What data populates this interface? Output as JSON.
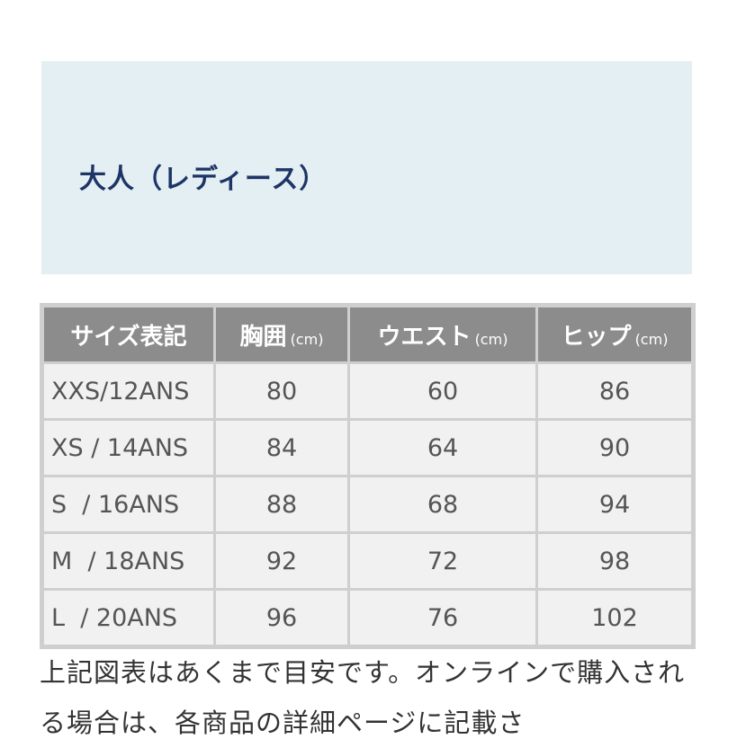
{
  "banner": {
    "title": "大人（レディース）"
  },
  "table": {
    "headers": [
      {
        "label": "サイズ表記",
        "unit": ""
      },
      {
        "label": "胸囲",
        "unit": "(cm)"
      },
      {
        "label": "ウエスト",
        "unit": "(cm)"
      },
      {
        "label": "ヒップ",
        "unit": "(cm)"
      }
    ],
    "rows": [
      [
        "XXS/12ANS",
        "80",
        "60",
        "86"
      ],
      [
        "XS / 14ANS",
        "84",
        "64",
        "90"
      ],
      [
        "S  / 16ANS",
        "88",
        "68",
        "94"
      ],
      [
        "M  / 18ANS",
        "92",
        "72",
        "98"
      ],
      [
        "L  / 20ANS",
        "96",
        "76",
        "102"
      ]
    ]
  },
  "note": "上記図表はあくまで目安です。オンラインで購入される場合は、各商品の詳細ページに記載さ"
}
